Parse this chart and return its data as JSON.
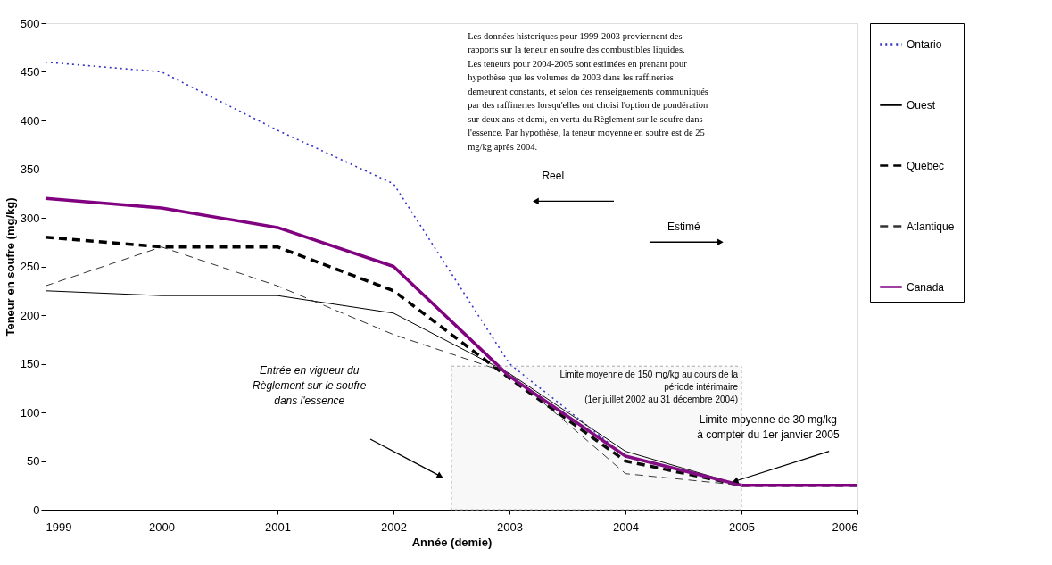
{
  "chart_data": {
    "type": "line",
    "xlabel": "Année (demie)",
    "ylabel": "Teneur en soufre (mg/kg)",
    "x": [
      1999,
      2000,
      2001,
      2002,
      2003,
      2004,
      2005,
      2006
    ],
    "series": [
      {
        "name": "Ontario",
        "color": "#3333cc",
        "line_style": "dotted",
        "values": [
          460,
          450,
          390,
          335,
          150,
          55,
          25,
          25
        ]
      },
      {
        "name": "Ouest",
        "color": "#000000",
        "line_style": "solid",
        "values": [
          225,
          220,
          220,
          202,
          140,
          60,
          25,
          25
        ]
      },
      {
        "name": "Québec",
        "color": "#000000",
        "line_style": "dashed",
        "values": [
          280,
          270,
          270,
          225,
          135,
          50,
          25,
          25
        ]
      },
      {
        "name": "Atlantique",
        "color": "#333333",
        "line_style": "dashed",
        "values": [
          230,
          270,
          230,
          180,
          140,
          37,
          25,
          25
        ]
      },
      {
        "name": "Canada",
        "color": "#800080",
        "line_style": "solid",
        "values": [
          320,
          310,
          290,
          250,
          137,
          55,
          25,
          25
        ]
      }
    ],
    "xlim": [
      1999,
      2006
    ],
    "xticks": [
      1999,
      2000,
      2001,
      2002,
      2003,
      2004,
      2005,
      2006
    ],
    "ylim": [
      0,
      500
    ],
    "yticks": [
      0,
      50,
      100,
      150,
      200,
      250,
      300,
      350,
      400,
      450,
      500
    ],
    "grid": false,
    "legend": "right",
    "bands": [
      {
        "axis": "x",
        "from": 2002.5,
        "to": 2005,
        "color": "#aaaaaa",
        "label": "Limite moyenne de 150 mg/kg au cours de la\npériode intérimaire\n(1er juillet 2002  au 31 décembre 2004)"
      }
    ],
    "annotations": [
      "Les données historiques pour 1999-2003 proviennent des\nrapports sur la teneur en soufre des combustibles liquides.\nLes teneurs pour 2004-2005 sont estimées en prenant pour\nhypothèse que les volumes de 2003 dans les raffineries\ndemeurent constants, et selon des renseignements communiqués\npar des raffineries lorsqu'elles ont choisi l'option de pondération\nsur deux ans et demi, en vertu du Règlement sur le soufre dans\nl'essence.  Par hypothèse, la teneur moyenne en soufre est de 25\nmg/kg après 2004.",
      "Reel",
      "Estimé",
      "Entrée en vigueur du\nRèglement sur le soufre\ndans l'essence",
      {
        "text": "Limite moyenne de 30 mg/kg\nà compter du 1er janvier 2005",
        "x": 2005,
        "y": 25
      }
    ]
  }
}
